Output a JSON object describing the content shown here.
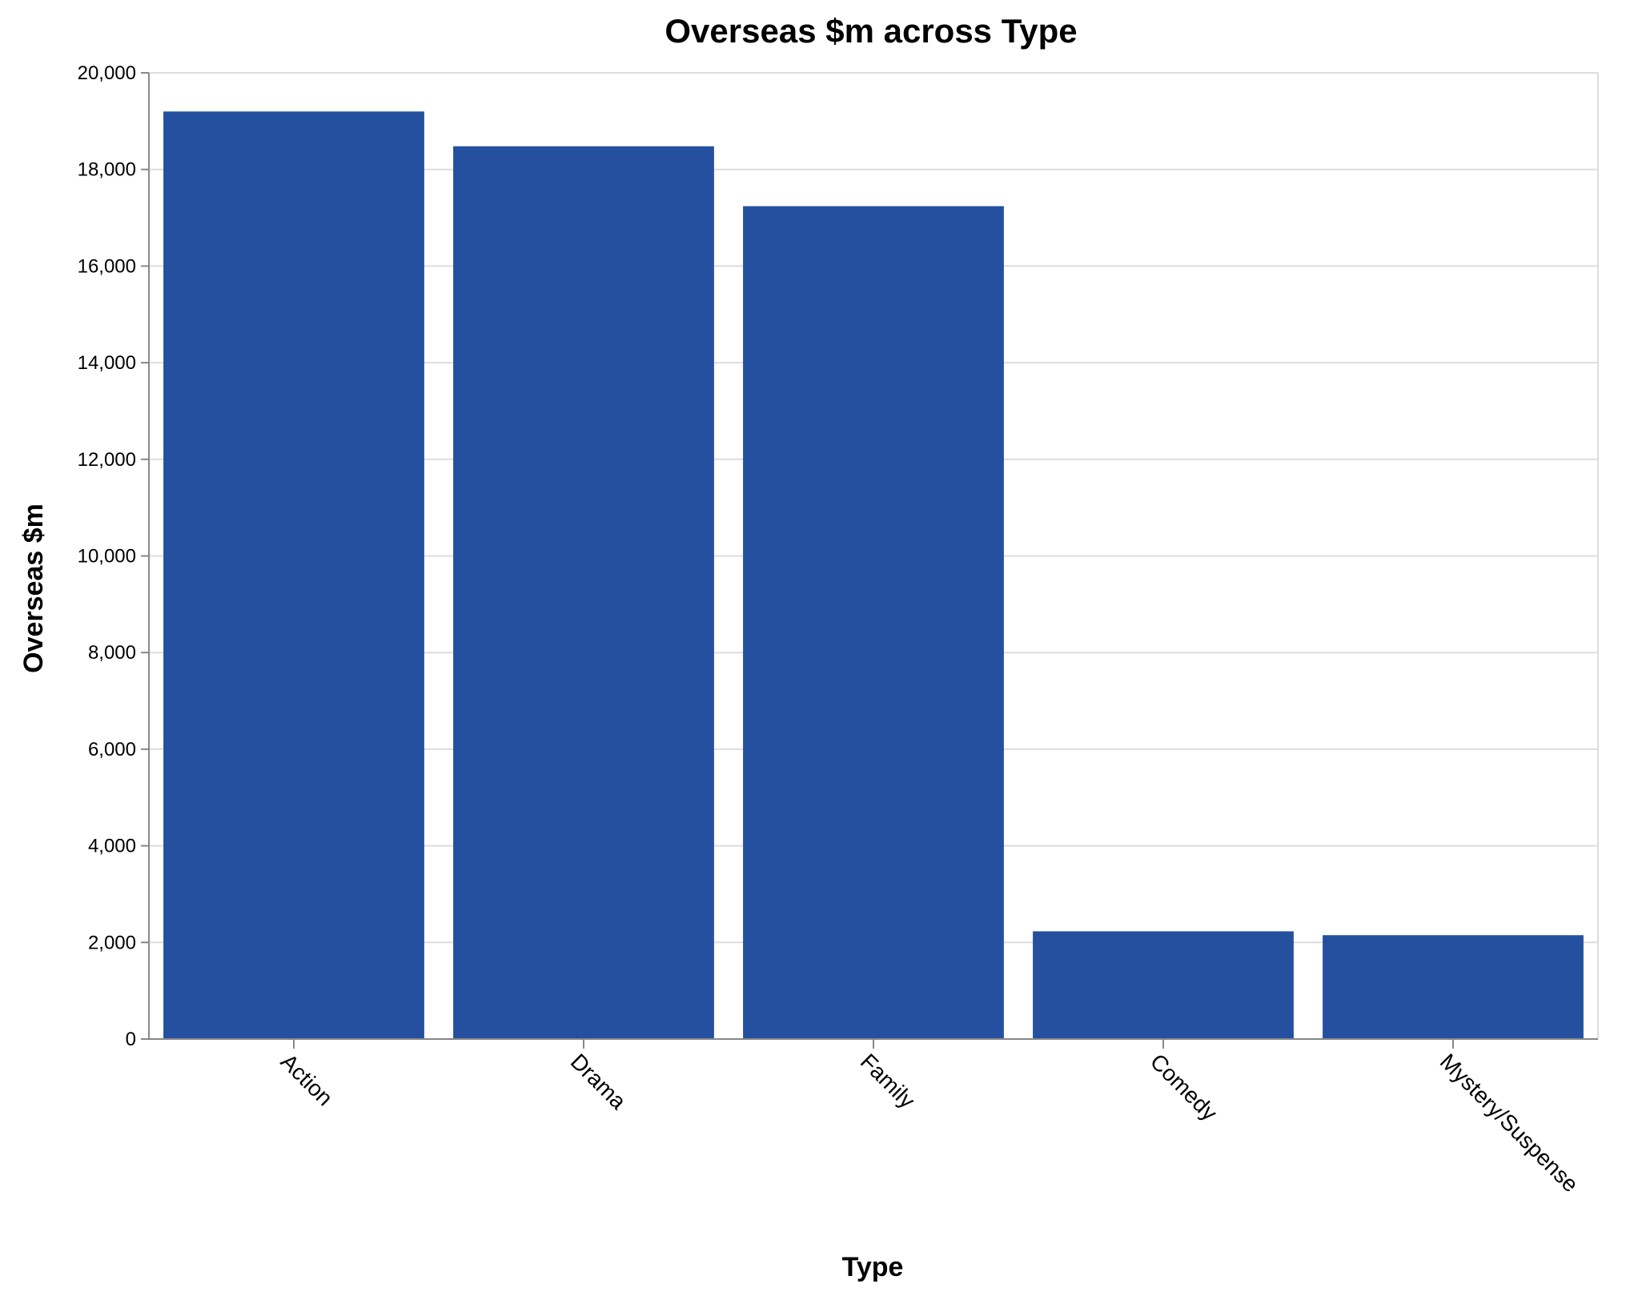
{
  "chart_data": {
    "type": "bar",
    "title": "Overseas $m across Type",
    "xlabel": "Type",
    "ylabel": "Overseas $m",
    "categories": [
      "Action",
      "Drama",
      "Family",
      "Comedy",
      "Mystery/Suspense"
    ],
    "values": [
      19200,
      18480,
      17240,
      2230,
      2150
    ],
    "ylim": [
      0,
      20000
    ],
    "yticks": [
      0,
      2000,
      4000,
      6000,
      8000,
      10000,
      12000,
      14000,
      16000,
      18000,
      20000
    ],
    "ytick_labels": [
      "0",
      "2,000",
      "4,000",
      "6,000",
      "8,000",
      "10,000",
      "12,000",
      "14,000",
      "16,000",
      "18,000",
      "20,000"
    ],
    "grid": true,
    "bar_color": "#24509f",
    "grid_color": "#dddddd",
    "axis_color": "#888888"
  }
}
